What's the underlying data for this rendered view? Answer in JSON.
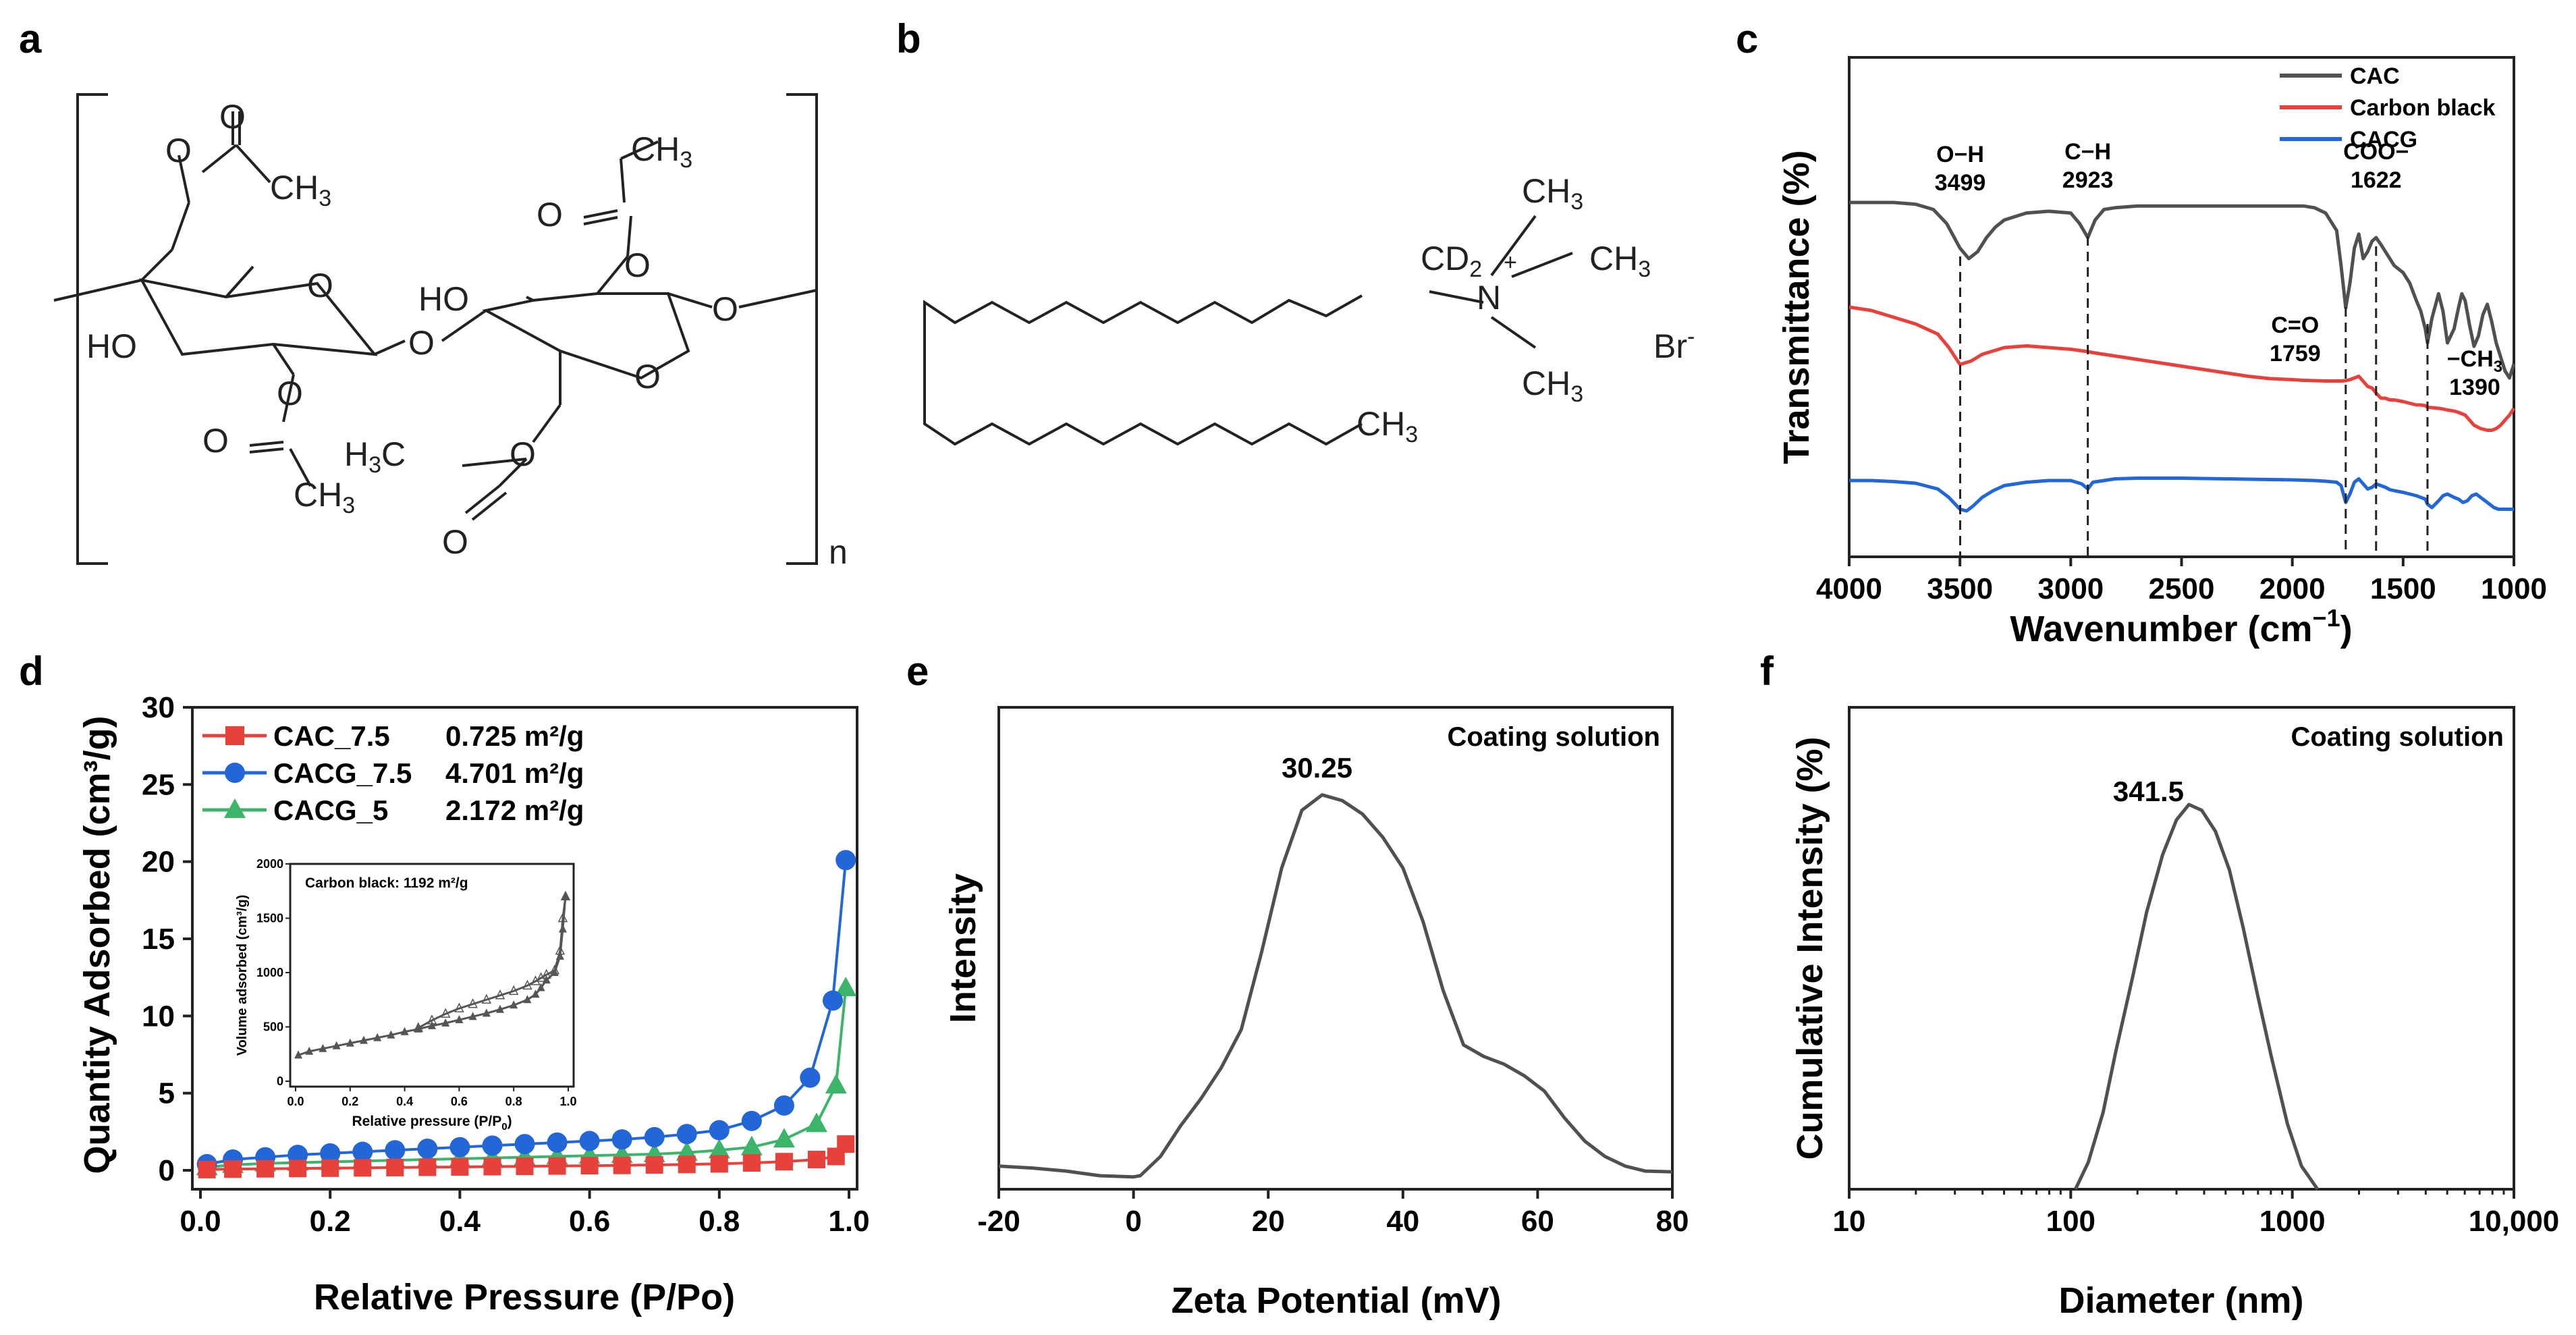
{
  "panels": {
    "a": "a",
    "b": "b",
    "c": "c",
    "d": "d",
    "e": "e",
    "f": "f"
  },
  "colors": {
    "gray": "#505050",
    "red": "#e8413c",
    "blue": "#2266d8",
    "green": "#3cb46a"
  },
  "structure_a": {
    "atoms": {
      "O": "O",
      "HO": "HO",
      "CH3": "CH",
      "H3C": "H",
      "C": "C",
      "sub3": "3",
      "n": "n"
    }
  },
  "structure_b": {
    "cd": "CD",
    "cd_sub": "2",
    "n": "N",
    "plus": "+",
    "ch": "CH",
    "sub3": "3",
    "br": "Br",
    "minus": "-"
  },
  "chart_data": [
    {
      "panel": "c",
      "type": "line",
      "xlabel": "Wavenumber (cm",
      "xlabel_sup": "−1",
      "xlabel_end": ")",
      "ylabel": "Transmittance (%)",
      "xlim": [
        4000,
        1000
      ],
      "xticks": [
        4000,
        3500,
        3000,
        2500,
        2000,
        1500,
        1000
      ],
      "legend": [
        "CAC",
        "Carbon black",
        "CACG"
      ],
      "annotations": [
        {
          "t1": "O−H",
          "t2": "3499",
          "x": 3499
        },
        {
          "t1": "C−H",
          "t2": "2923",
          "x": 2923
        },
        {
          "t1": "COO−",
          "t2": "1622",
          "x": 1622
        },
        {
          "t1": "C=O",
          "t2": "1759",
          "x": 1759
        },
        {
          "t1": "−CH",
          "t1sub": "3",
          "t2": "1390",
          "x": 1390
        }
      ],
      "series": [
        {
          "name": "CAC",
          "x": [
            4000,
            3900,
            3800,
            3700,
            3620,
            3560,
            3500,
            3460,
            3420,
            3380,
            3340,
            3300,
            3250,
            3200,
            3100,
            3000,
            2960,
            2923,
            2890,
            2850,
            2800,
            2700,
            2600,
            2500,
            2400,
            2300,
            2200,
            2100,
            2000,
            1950,
            1900,
            1850,
            1800,
            1780,
            1759,
            1740,
            1720,
            1700,
            1680,
            1660,
            1640,
            1622,
            1600,
            1580,
            1560,
            1540,
            1500,
            1470,
            1440,
            1420,
            1400,
            1390,
            1370,
            1340,
            1320,
            1300,
            1270,
            1250,
            1235,
            1220,
            1200,
            1180,
            1160,
            1140,
            1120,
            1100,
            1080,
            1060,
            1040,
            1020,
            1000
          ],
          "y": [
            88,
            88,
            88,
            87.5,
            86,
            82,
            75,
            72,
            74,
            78,
            81,
            83,
            84,
            85,
            85.5,
            85,
            82,
            78,
            83,
            86,
            86.5,
            87,
            87,
            87,
            87,
            87,
            87,
            87,
            87,
            87,
            86.5,
            85,
            80,
            70,
            58,
            65,
            75,
            79,
            72,
            74,
            77,
            78,
            76,
            74,
            72,
            70,
            68,
            65,
            60,
            57,
            52,
            48,
            55,
            62,
            57,
            48,
            52,
            58,
            62,
            60,
            53,
            47,
            50,
            56,
            59,
            54,
            48,
            44,
            40,
            38,
            42
          ]
        },
        {
          "name": "Carbon black",
          "x": [
            4000,
            3900,
            3800,
            3700,
            3600,
            3550,
            3500,
            3450,
            3400,
            3350,
            3300,
            3200,
            3100,
            3000,
            2923,
            2900,
            2800,
            2700,
            2600,
            2500,
            2400,
            2300,
            2200,
            2100,
            2000,
            1950,
            1900,
            1850,
            1800,
            1780,
            1759,
            1740,
            1720,
            1700,
            1680,
            1660,
            1640,
            1622,
            1600,
            1580,
            1560,
            1540,
            1500,
            1470,
            1440,
            1420,
            1400,
            1390,
            1370,
            1340,
            1320,
            1300,
            1270,
            1250,
            1220,
            1200,
            1180,
            1150,
            1120,
            1100,
            1080,
            1060,
            1040,
            1020,
            1000
          ],
          "y": [
            50,
            49,
            47,
            45,
            42,
            38,
            33,
            34,
            36,
            37,
            38,
            38.5,
            38,
            37.5,
            36.8,
            36.5,
            35.5,
            34.5,
            33.5,
            32.5,
            31.5,
            30.5,
            29.5,
            28.8,
            28.5,
            28.3,
            28.2,
            28.1,
            28.1,
            28.1,
            28.2,
            28.5,
            29,
            29.5,
            28,
            26.5,
            26,
            24.5,
            23,
            23,
            22.5,
            22.5,
            22,
            21.5,
            21,
            21,
            20.8,
            20.3,
            20.2,
            20,
            19.8,
            19.5,
            19.2,
            18.8,
            18,
            16.5,
            15,
            14,
            13.5,
            13.5,
            14,
            15,
            16.5,
            18,
            20
          ]
        },
        {
          "name": "CACG",
          "x": [
            4000,
            3900,
            3800,
            3700,
            3600,
            3550,
            3500,
            3470,
            3440,
            3400,
            3350,
            3300,
            3200,
            3100,
            3000,
            2950,
            2923,
            2900,
            2800,
            2700,
            2600,
            2500,
            2400,
            2300,
            2200,
            2100,
            2000,
            1950,
            1900,
            1850,
            1800,
            1780,
            1759,
            1740,
            1720,
            1700,
            1680,
            1660,
            1640,
            1622,
            1600,
            1580,
            1560,
            1540,
            1500,
            1470,
            1440,
            1420,
            1400,
            1390,
            1370,
            1340,
            1320,
            1300,
            1270,
            1250,
            1230,
            1210,
            1190,
            1170,
            1150,
            1130,
            1110,
            1090,
            1070,
            1050,
            1030,
            1010,
            1000
          ],
          "y": [
            12,
            12,
            11.7,
            11.2,
            9.5,
            7,
            3.5,
            3,
            4.5,
            7,
            9,
            10.5,
            11.5,
            12,
            12,
            11,
            9.5,
            11.5,
            12.5,
            12.7,
            12.7,
            12.7,
            12.6,
            12.5,
            12.4,
            12.3,
            12.2,
            12.1,
            12,
            11.8,
            11.5,
            10.5,
            5.5,
            8,
            11.5,
            12.5,
            11,
            9.5,
            10,
            11,
            10.5,
            10,
            9.3,
            9,
            8.5,
            8,
            7.5,
            7,
            6.5,
            5,
            4,
            6,
            7.5,
            8,
            7,
            6.5,
            5.5,
            6,
            7.5,
            8,
            7,
            6,
            5,
            4,
            3.5,
            3.5,
            3.5,
            3.5,
            3.5
          ]
        }
      ]
    },
    {
      "panel": "d",
      "type": "scatter",
      "xlabel": "Relative Pressure (P/Po)",
      "ylabel": "Quantity Adsorbed (cm³/g)",
      "xlim": [
        0,
        1
      ],
      "ylim": [
        0,
        30
      ],
      "xticks": [
        "0.0",
        "0.2",
        "0.4",
        "0.6",
        "0.8",
        "1.0"
      ],
      "yticks": [
        "0",
        "5",
        "10",
        "15",
        "20",
        "25",
        "30"
      ],
      "series": [
        {
          "name": "CAC_7.5",
          "area": "0.725 m²/g",
          "x": [
            0.01,
            0.05,
            0.1,
            0.15,
            0.2,
            0.25,
            0.3,
            0.35,
            0.4,
            0.45,
            0.5,
            0.55,
            0.6,
            0.65,
            0.7,
            0.75,
            0.8,
            0.85,
            0.9,
            0.95,
            0.98,
            0.995
          ],
          "y": [
            0.05,
            0.08,
            0.1,
            0.12,
            0.14,
            0.16,
            0.18,
            0.2,
            0.22,
            0.24,
            0.26,
            0.28,
            0.3,
            0.32,
            0.35,
            0.38,
            0.42,
            0.48,
            0.56,
            0.7,
            0.9,
            1.7
          ]
        },
        {
          "name": "CACG_7.5",
          "area": "4.701 m²/g",
          "x": [
            0.01,
            0.05,
            0.1,
            0.15,
            0.2,
            0.25,
            0.3,
            0.35,
            0.4,
            0.45,
            0.5,
            0.55,
            0.6,
            0.65,
            0.7,
            0.75,
            0.8,
            0.85,
            0.9,
            0.94,
            0.975,
            0.995
          ],
          "y": [
            0.4,
            0.7,
            0.85,
            1.0,
            1.1,
            1.2,
            1.3,
            1.4,
            1.5,
            1.6,
            1.7,
            1.8,
            1.9,
            2.0,
            2.15,
            2.35,
            2.6,
            3.2,
            4.2,
            6.0,
            11.0,
            20.1
          ]
        },
        {
          "name": "CACG_5",
          "area": "2.172 m²/g",
          "x": [
            0.01,
            0.05,
            0.1,
            0.15,
            0.2,
            0.25,
            0.3,
            0.35,
            0.4,
            0.45,
            0.5,
            0.55,
            0.6,
            0.65,
            0.7,
            0.75,
            0.8,
            0.85,
            0.9,
            0.95,
            0.98,
            0.995
          ],
          "y": [
            0.2,
            0.35,
            0.45,
            0.5,
            0.55,
            0.6,
            0.65,
            0.7,
            0.75,
            0.8,
            0.85,
            0.9,
            0.95,
            1.0,
            1.05,
            1.15,
            1.3,
            1.5,
            2.0,
            3.0,
            5.5,
            11.8
          ]
        }
      ],
      "inset": {
        "label": "Carbon black: 1192 m²/g",
        "xlabel": "Relative pressure (P/P",
        "xlabel_sub": "0",
        "xlabel_end": ")",
        "ylabel": "Volume adsorbed (cm³/g)",
        "xlim": [
          0,
          1
        ],
        "ylim": [
          0,
          2000
        ],
        "xticks": [
          "0.0",
          "0.2",
          "0.4",
          "0.6",
          "0.8",
          "1.0"
        ],
        "yticks": [
          "0",
          "500",
          "1000",
          "1500",
          "2000"
        ],
        "adsorption": {
          "x": [
            0.01,
            0.05,
            0.1,
            0.15,
            0.2,
            0.25,
            0.3,
            0.35,
            0.4,
            0.45,
            0.5,
            0.55,
            0.6,
            0.65,
            0.7,
            0.75,
            0.8,
            0.85,
            0.88,
            0.9,
            0.92,
            0.95,
            0.97,
            0.98,
            0.99
          ],
          "y": [
            240,
            275,
            300,
            325,
            350,
            375,
            400,
            425,
            455,
            480,
            510,
            535,
            565,
            595,
            625,
            660,
            700,
            750,
            800,
            860,
            930,
            1000,
            1150,
            1400,
            1700
          ]
        },
        "desorption": {
          "x": [
            0.99,
            0.98,
            0.97,
            0.95,
            0.92,
            0.9,
            0.88,
            0.85,
            0.8,
            0.75,
            0.7,
            0.65,
            0.6,
            0.55,
            0.5,
            0.45
          ],
          "y": [
            1700,
            1500,
            1200,
            1020,
            980,
            950,
            920,
            880,
            830,
            790,
            750,
            710,
            670,
            620,
            560,
            490
          ]
        }
      }
    },
    {
      "panel": "e",
      "type": "line",
      "xlabel": "Zeta Potential (mV)",
      "ylabel": "Intensity",
      "note": "Coating solution",
      "peak_label": "30.25",
      "xlim": [
        -20,
        80
      ],
      "xticks": [
        "-20",
        "0",
        "20",
        "40",
        "60",
        "80"
      ],
      "x": [
        -20,
        -15,
        -10,
        -5,
        0,
        1,
        4,
        7,
        10,
        13,
        16,
        19,
        22,
        25,
        28,
        31,
        34,
        37,
        40,
        43,
        46,
        49,
        52,
        55,
        58,
        61,
        64,
        67,
        70,
        73,
        76,
        80
      ],
      "y": [
        0.025,
        0.02,
        0.012,
        0,
        -0.003,
        0,
        0.05,
        0.13,
        0.2,
        0.28,
        0.38,
        0.58,
        0.8,
        0.95,
        0.99,
        0.975,
        0.94,
        0.88,
        0.8,
        0.66,
        0.48,
        0.34,
        0.31,
        0.29,
        0.26,
        0.22,
        0.15,
        0.09,
        0.05,
        0.025,
        0.012,
        0.01
      ]
    },
    {
      "panel": "f",
      "type": "line",
      "xlabel": "Diameter (nm)",
      "ylabel": "Cumulative Intensity (%)",
      "note": "Coating solution",
      "peak_label": "341.5",
      "xscale": "log",
      "xlim": [
        10,
        10000
      ],
      "xticks": [
        "10",
        "100",
        "1000",
        "10,000"
      ],
      "x": [
        105,
        120,
        140,
        160,
        190,
        220,
        260,
        300,
        341.5,
        390,
        450,
        520,
        600,
        700,
        800,
        950,
        1100,
        1300
      ],
      "y": [
        0,
        0.07,
        0.2,
        0.36,
        0.55,
        0.72,
        0.87,
        0.96,
        1.0,
        0.985,
        0.93,
        0.83,
        0.68,
        0.5,
        0.35,
        0.17,
        0.06,
        0
      ]
    }
  ]
}
